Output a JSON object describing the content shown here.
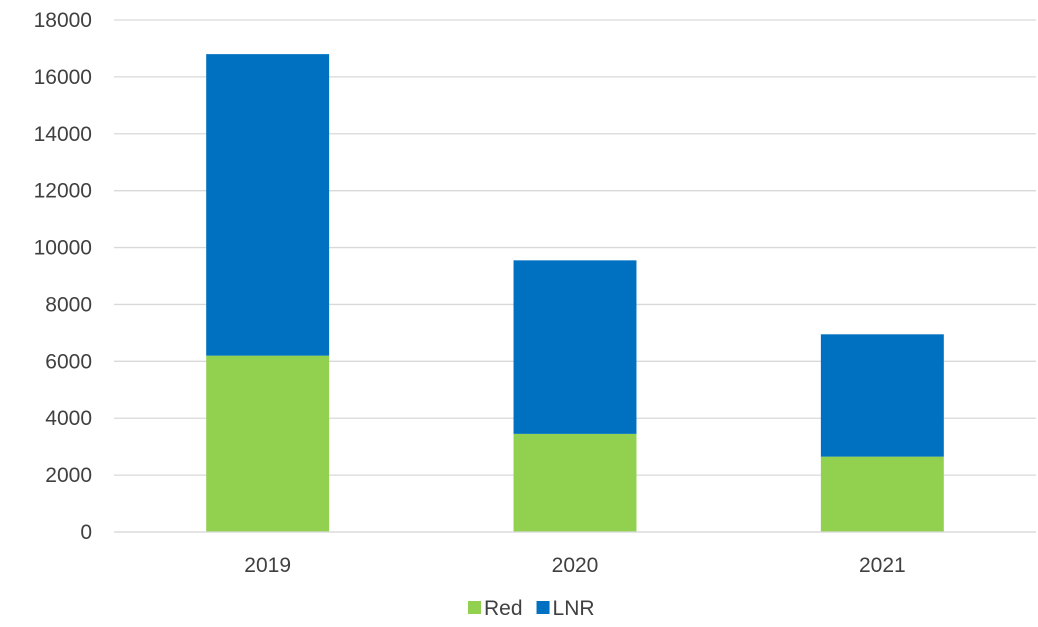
{
  "chart_data": {
    "type": "bar",
    "stacked": true,
    "categories": [
      "2019",
      "2020",
      "2021"
    ],
    "series": [
      {
        "name": "Red",
        "color": "#92d050",
        "values": [
          6200,
          3450,
          2650
        ]
      },
      {
        "name": "LNR",
        "color": "#0070c0",
        "values": [
          10600,
          6100,
          4300
        ]
      }
    ],
    "title": "",
    "xlabel": "",
    "ylabel": "",
    "ylim": [
      0,
      18000
    ],
    "yticks": [
      "0",
      "2000",
      "4000",
      "6000",
      "8000",
      "10000",
      "12000",
      "14000",
      "16000",
      "18000"
    ],
    "grid": true,
    "legend_position": "bottom-center"
  }
}
